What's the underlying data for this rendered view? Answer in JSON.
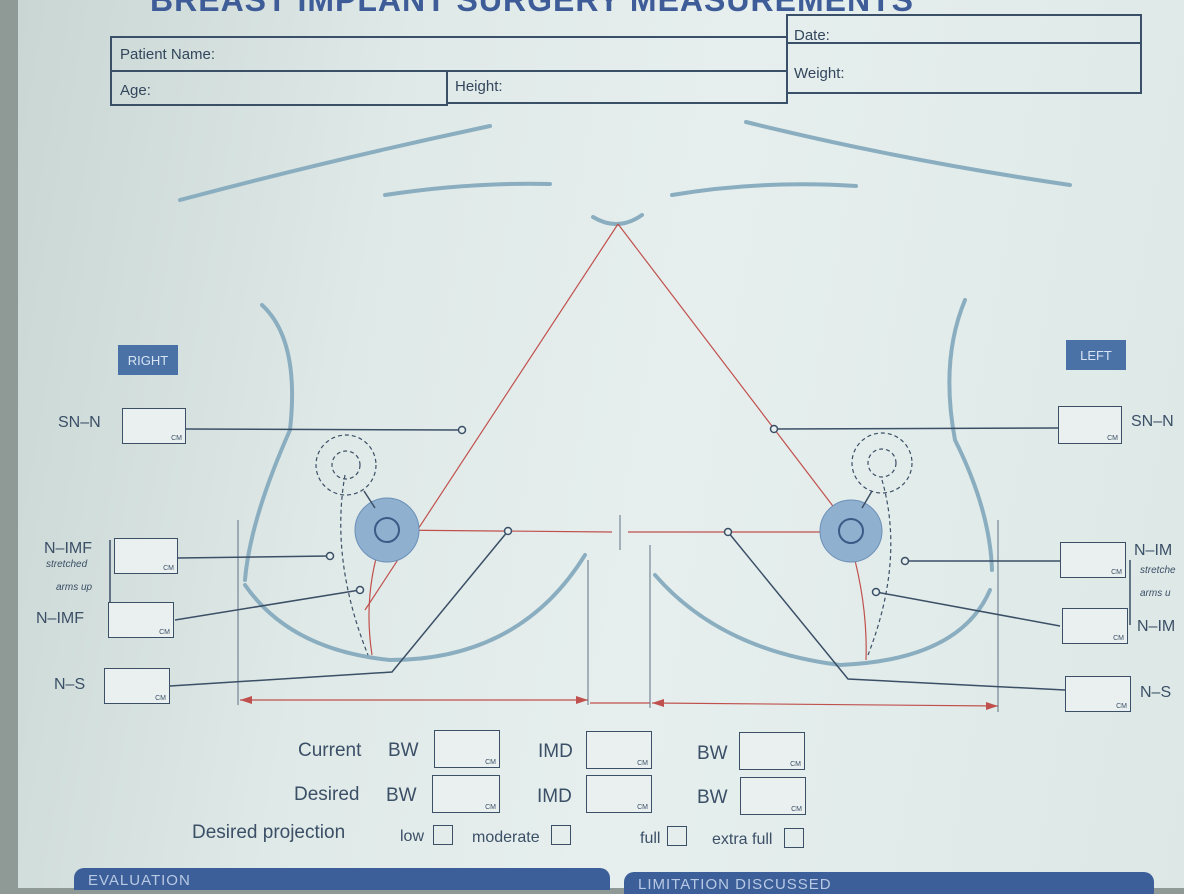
{
  "form": {
    "title": "BREAST IMPLANT SURGERY MEASUREMENTS",
    "fields": {
      "patient_name": "Patient Name:",
      "date": "Date:",
      "age": "Age:",
      "height": "Height:",
      "weight": "Weight:"
    }
  },
  "diagram": {
    "right_tag": "RIGHT",
    "left_tag": "LEFT",
    "right_labels": {
      "sn_n": "SN–N",
      "n_imf_stretched": "N–IMF",
      "stretched": "stretched",
      "arms_up": "arms up",
      "n_imf": "N–IMF",
      "n_s": "N–S"
    },
    "left_labels": {
      "sn_n": "SN–N",
      "n_imf_stretched": "N–IM",
      "stretched": "stretche",
      "arms_up": "arms u",
      "n_imf": "N–IM",
      "n_s": "N–S"
    },
    "unit": "CM"
  },
  "measurements": {
    "current_label": "Current",
    "desired_label": "Desired",
    "bw": "BW",
    "imd": "IMD",
    "projection_label": "Desired projection",
    "projection_options": [
      "low",
      "moderate",
      "full",
      "extra full"
    ]
  },
  "sections": {
    "evaluation": "EVALUATION",
    "limitation": "LIMITATION DISCUSSED"
  },
  "colors": {
    "ink": "#3b4f66",
    "blue": "#4a72a6",
    "red": "#c0504d",
    "skin": "#8aaec0"
  }
}
